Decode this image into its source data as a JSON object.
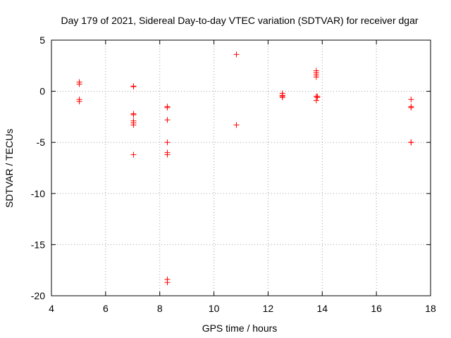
{
  "chart_data": {
    "type": "scatter",
    "title": "Day 179 of 2021, Sidereal Day-to-day VTEC variation (SDTVAR) for receiver dgar",
    "xlabel": "GPS time / hours",
    "ylabel": "SDTVAR / TECUs",
    "xlim": [
      4,
      18
    ],
    "ylim": [
      -20,
      5
    ],
    "xticks": [
      4,
      6,
      8,
      10,
      12,
      14,
      16,
      18
    ],
    "yticks": [
      5,
      0,
      -5,
      -10,
      -15,
      -20
    ],
    "grid": true,
    "marker": "plus",
    "colors": {
      "points": "#ff0000",
      "grid": "#a0a0a0",
      "axes": "#000000"
    },
    "series": [
      {
        "x": [
          5.03,
          5.03,
          5.03,
          5.03,
          7.03,
          7.03,
          7.03,
          7.03,
          7.03,
          7.03,
          7.03,
          7.03,
          8.28,
          8.28,
          8.28,
          8.28,
          8.28,
          8.28,
          8.28,
          10.83,
          10.83,
          12.53,
          12.53,
          12.53,
          12.53,
          13.78,
          13.78,
          13.78,
          13.78,
          13.78,
          13.82,
          13.82,
          13.78,
          17.28,
          17.28,
          17.28,
          17.28,
          17.28
        ],
        "y": [
          0.9,
          0.7,
          -0.8,
          -1.0,
          0.5,
          0.45,
          -2.2,
          -2.3,
          -2.9,
          -3.1,
          -3.3,
          -6.2,
          -1.5,
          -1.6,
          -2.8,
          -5.0,
          -6.0,
          -6.2,
          -18.4,
          3.6,
          -3.3,
          -0.2,
          -0.4,
          -0.5,
          -0.6,
          2.0,
          1.8,
          1.6,
          1.4,
          -0.5,
          -0.5,
          -0.6,
          -0.9,
          -0.8,
          -1.5,
          -1.6,
          -5.0,
          -5.0
        ]
      },
      {
        "x": [
          8.28
        ],
        "y": [
          -18.7
        ]
      }
    ]
  }
}
